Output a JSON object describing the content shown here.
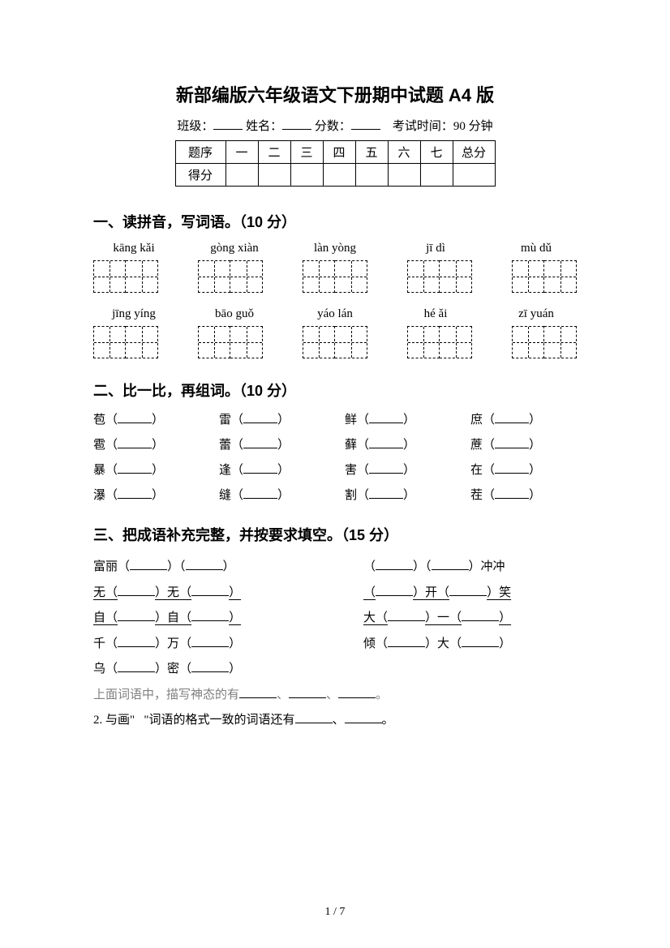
{
  "title": "新部编版六年级语文下册期中试题 A4 版",
  "info": {
    "class_label": "班级：",
    "name_label": "姓名：",
    "score_label": "分数：",
    "exam_time": "考试时间：90 分钟"
  },
  "score_table": {
    "row1_label": "题序",
    "cols": [
      "一",
      "二",
      "三",
      "四",
      "五",
      "六",
      "七"
    ],
    "total_label": "总分",
    "row2_label": "得分"
  },
  "section1": {
    "heading": "一、读拼音，写词语。（10 分）",
    "row1_pinyin": [
      "kāng kǎi",
      "gòng xiàn",
      "làn yòng",
      "jī dì",
      "mù dǔ"
    ],
    "row2_pinyin": [
      "jīng yíng",
      "bāo guǒ",
      "yáo lán",
      "hé ǎi",
      "zī yuán"
    ]
  },
  "section2": {
    "heading": "二、比一比，再组词。（10 分）",
    "rows": [
      [
        "苞",
        "雷",
        "鲜",
        "庶"
      ],
      [
        "雹",
        "蕾",
        "藓",
        "蔗"
      ],
      [
        "暴",
        "逢",
        "害",
        "在"
      ],
      [
        "瀑",
        "缝",
        "割",
        "茬"
      ]
    ]
  },
  "section3": {
    "heading": "三、把成语补充完整，并按要求填空。（15 分）",
    "lines": [
      {
        "left_pre": "富丽",
        "left_mid": "",
        "right_suf": "冲冲",
        "underline": false
      },
      {
        "left_pre": "无",
        "left_mid": "无",
        "right_pre": "",
        "right_mid": "开",
        "right_suf": "笑",
        "underline": true
      },
      {
        "left_pre": "自",
        "left_mid": "自",
        "right_pre": "大",
        "right_mid": "一",
        "underline": true
      },
      {
        "left_pre": "千",
        "left_mid": "万",
        "right_pre": "倾",
        "right_mid": "大",
        "underline": false
      },
      {
        "left_pre": "乌",
        "left_mid": "密",
        "underline": false
      }
    ],
    "note1": "上面词语中，描写神态的有",
    "note1_suffix": "、",
    "note1_end": "。",
    "note2_a": "2. 与画\"",
    "note2_b": "\"词语的格式一致的词语还有",
    "note2_sep": "、",
    "note2_end": "。"
  },
  "page_number": "1 / 7"
}
